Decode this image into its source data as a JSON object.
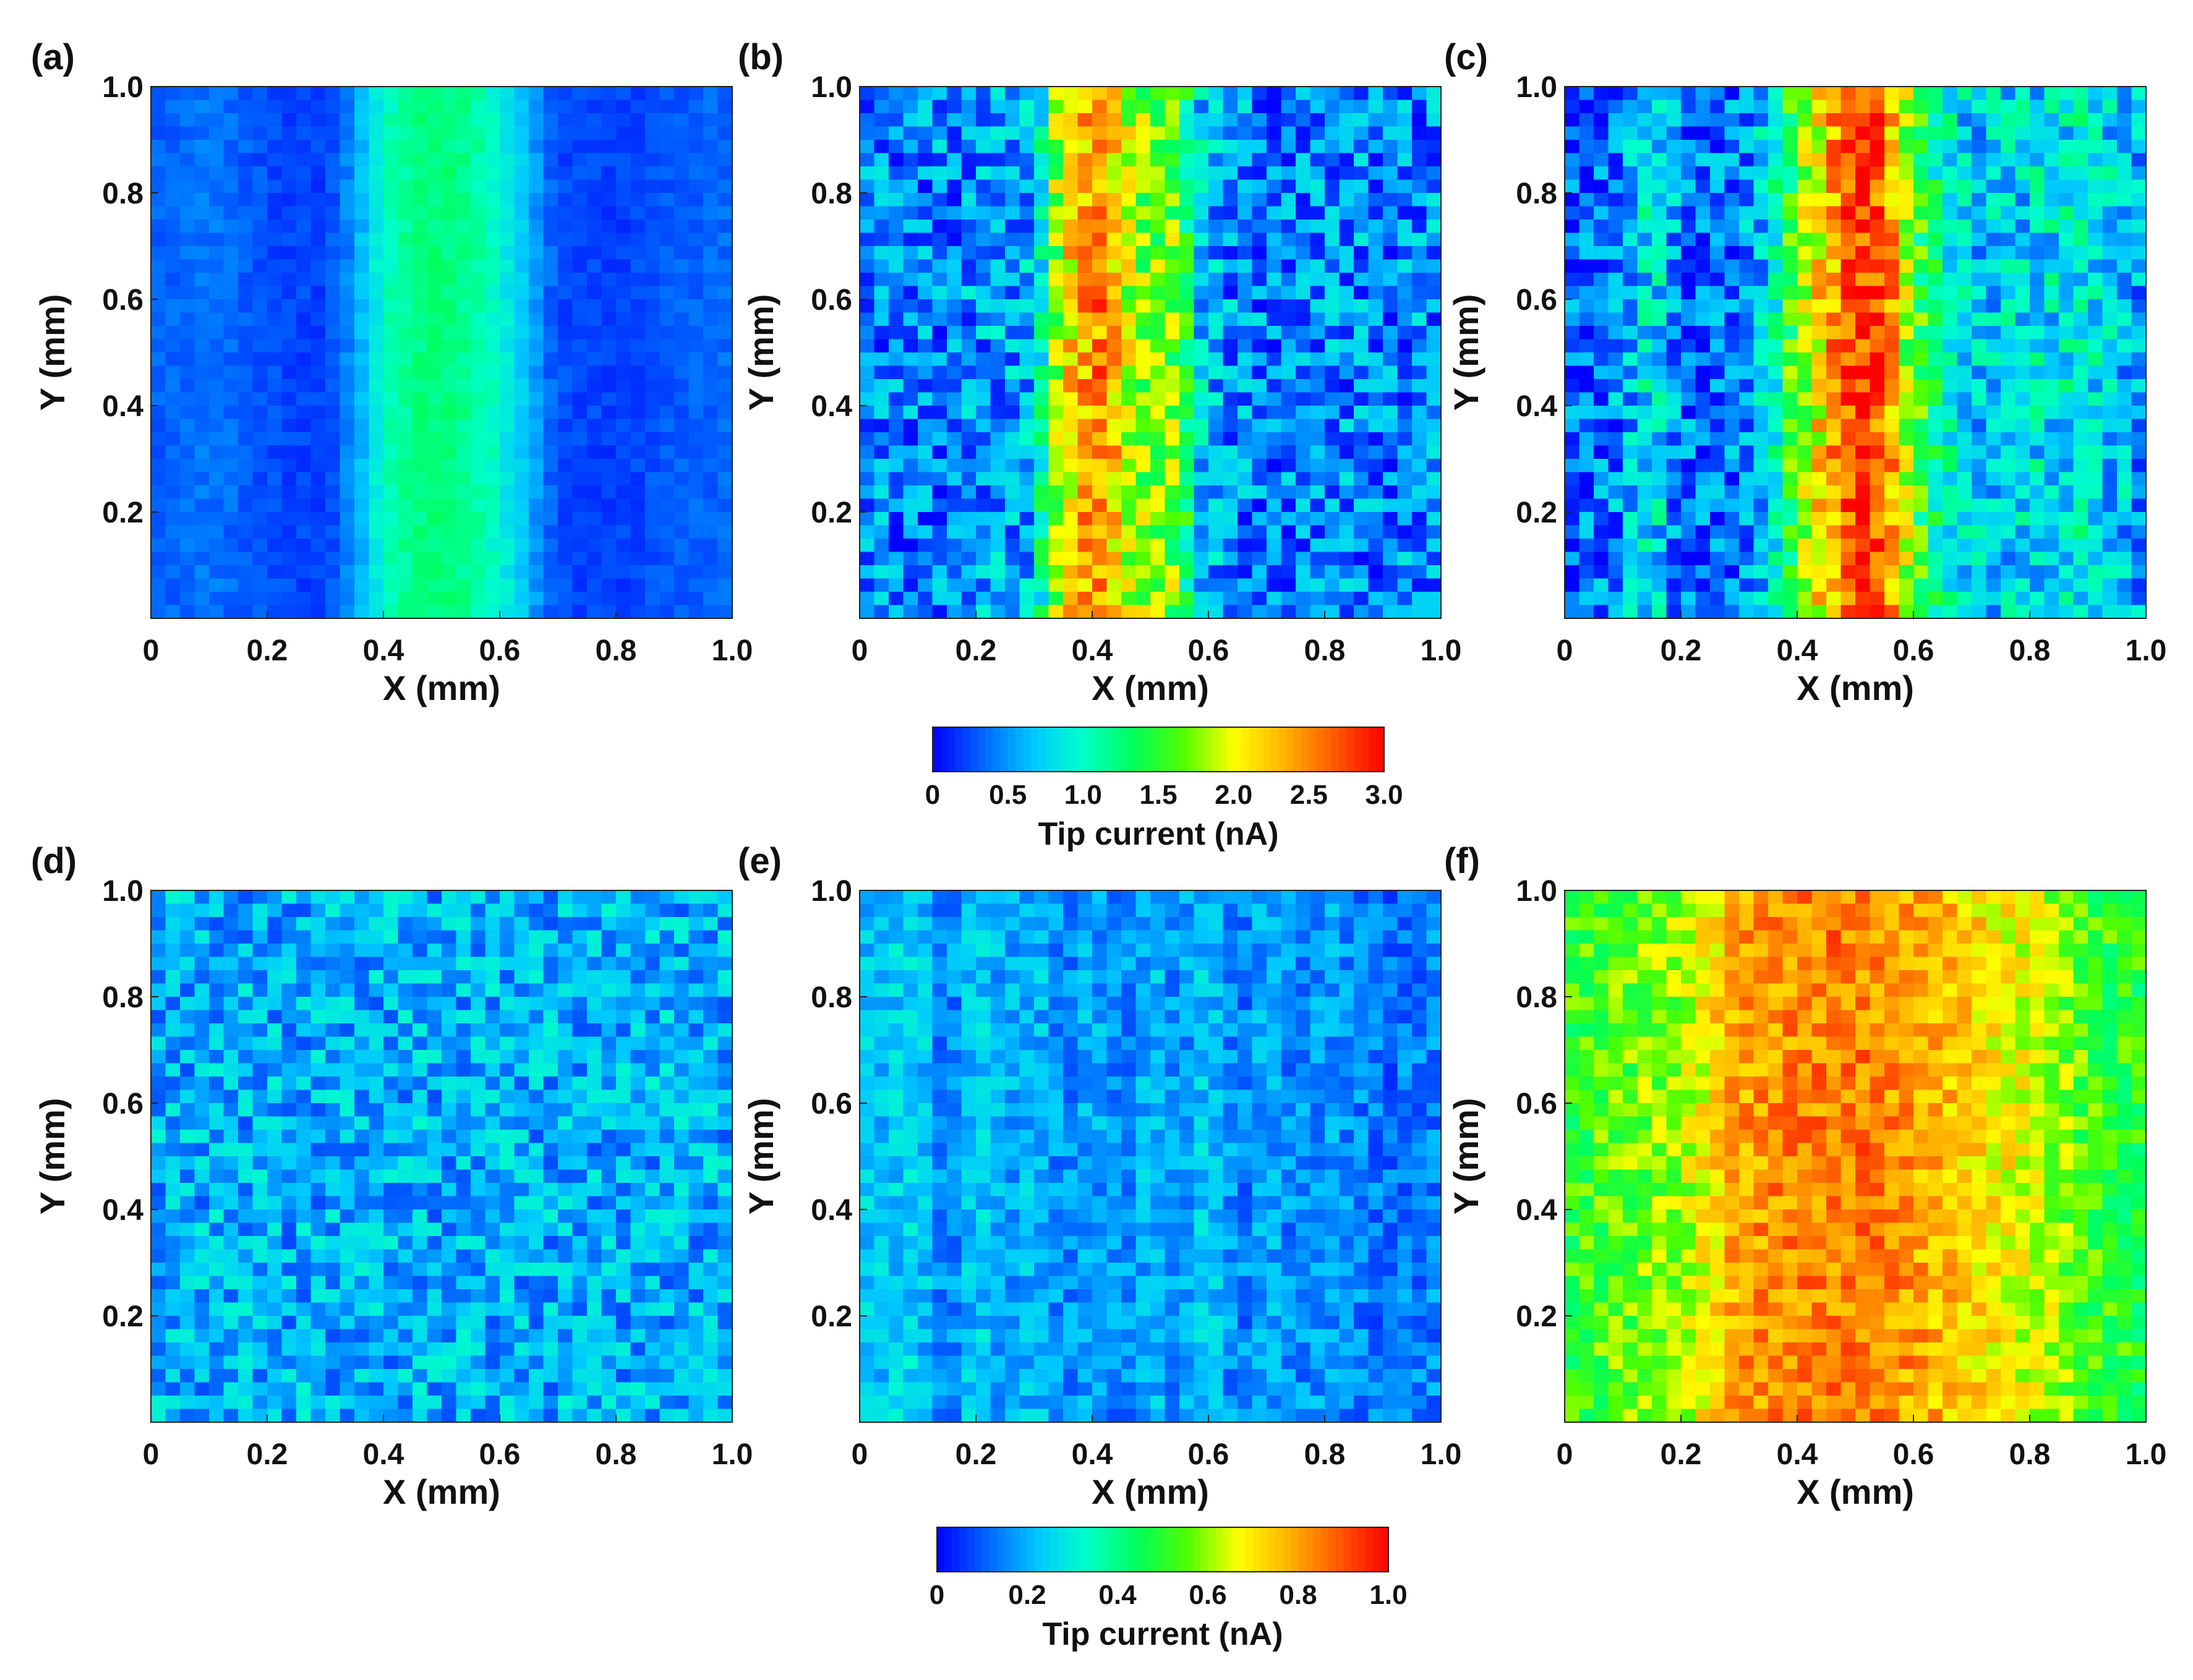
{
  "colormap": [
    "#0000ff",
    "#0064ff",
    "#00c8ff",
    "#00ffc8",
    "#00ff5a",
    "#50ff00",
    "#ffff00",
    "#ffb400",
    "#ff5a00",
    "#ff0000"
  ],
  "chart_data": [
    {
      "panel": "(a)",
      "type": "heatmap",
      "xlabel": "X (mm)",
      "ylabel": "Y (mm)",
      "xticks": [
        "0",
        "0.2",
        "0.4",
        "0.6",
        "0.8",
        "1.0"
      ],
      "yticks": [
        "0.2",
        "0.4",
        "0.6",
        "0.8",
        "1.0"
      ],
      "xlim": [
        0,
        1
      ],
      "ylim": [
        0,
        1
      ],
      "vmax": 3.0,
      "pattern": "stripe",
      "noise": 0.03,
      "seed": 11,
      "profile_x": [
        0,
        0.1,
        0.2,
        0.3,
        0.35,
        0.4,
        0.45,
        0.5,
        0.55,
        0.6,
        0.65,
        0.7,
        0.8,
        0.9,
        1.0
      ],
      "profile_v": [
        0.3,
        0.4,
        0.25,
        0.2,
        0.5,
        1.0,
        1.2,
        1.25,
        1.15,
        0.95,
        0.6,
        0.25,
        0.2,
        0.3,
        0.35
      ]
    },
    {
      "panel": "(b)",
      "type": "heatmap",
      "xlabel": "X (mm)",
      "ylabel": "Y (mm)",
      "xticks": [
        "0",
        "0.2",
        "0.4",
        "0.6",
        "0.8",
        "1.0"
      ],
      "yticks": [
        "0.2",
        "0.4",
        "0.6",
        "0.8",
        "1.0"
      ],
      "xlim": [
        0,
        1
      ],
      "ylim": [
        0,
        1
      ],
      "vmax": 3.0,
      "pattern": "stripe",
      "noise": 0.15,
      "seed": 23,
      "profile_x": [
        0,
        0.1,
        0.2,
        0.3,
        0.33,
        0.37,
        0.42,
        0.47,
        0.5,
        0.55,
        0.58,
        0.62,
        0.7,
        0.8,
        0.9,
        1.0
      ],
      "profile_v": [
        0.45,
        0.4,
        0.5,
        0.6,
        1.6,
        2.3,
        2.5,
        1.8,
        1.7,
        1.7,
        0.8,
        0.5,
        0.4,
        0.5,
        0.4,
        0.5
      ]
    },
    {
      "panel": "(c)",
      "type": "heatmap",
      "xlabel": "X (mm)",
      "ylabel": "Y (mm)",
      "xticks": [
        "0",
        "0.2",
        "0.4",
        "0.6",
        "0.8",
        "1.0"
      ],
      "yticks": [
        "0.2",
        "0.4",
        "0.6",
        "0.8",
        "1.0"
      ],
      "xlim": [
        0,
        1
      ],
      "ylim": [
        0,
        1
      ],
      "vmax": 3.0,
      "pattern": "stripe",
      "noise": 0.15,
      "seed": 37,
      "profile_x": [
        0,
        0.08,
        0.15,
        0.2,
        0.25,
        0.3,
        0.35,
        0.4,
        0.45,
        0.5,
        0.55,
        0.6,
        0.65,
        0.7,
        0.8,
        0.9,
        1.0
      ],
      "profile_v": [
        0.3,
        0.4,
        0.9,
        0.4,
        0.35,
        0.4,
        0.8,
        1.7,
        2.2,
        2.9,
        2.6,
        1.6,
        1.0,
        0.7,
        0.8,
        0.9,
        0.5
      ]
    },
    {
      "panel": "(d)",
      "type": "heatmap",
      "xlabel": "X (mm)",
      "ylabel": "Y (mm)",
      "xticks": [
        "0",
        "0.2",
        "0.4",
        "0.6",
        "0.8",
        "1.0"
      ],
      "yticks": [
        "0.2",
        "0.4",
        "0.6",
        "0.8",
        "1.0"
      ],
      "xlim": [
        0,
        1
      ],
      "ylim": [
        0,
        1
      ],
      "vmax": 1.0,
      "pattern": "noise",
      "base": 0.08,
      "noise": 0.12,
      "seed": 41
    },
    {
      "panel": "(e)",
      "type": "heatmap",
      "xlabel": "X (mm)",
      "ylabel": "Y (mm)",
      "xticks": [
        "0",
        "0.2",
        "0.4",
        "0.6",
        "0.8",
        "1.0"
      ],
      "yticks": [
        "0.2",
        "0.4",
        "0.6",
        "0.8",
        "1.0"
      ],
      "xlim": [
        0,
        1
      ],
      "ylim": [
        0,
        1
      ],
      "vmax": 1.0,
      "pattern": "stripe",
      "noise": 0.08,
      "seed": 53,
      "profile_x": [
        0,
        0.1,
        0.15,
        0.2,
        0.25,
        0.3,
        0.35,
        0.4,
        0.45,
        0.5,
        0.55,
        0.6,
        0.65,
        0.7,
        0.75,
        0.8,
        0.9,
        1.0
      ],
      "profile_v": [
        0.22,
        0.25,
        0.12,
        0.25,
        0.18,
        0.22,
        0.15,
        0.2,
        0.14,
        0.22,
        0.15,
        0.25,
        0.13,
        0.2,
        0.14,
        0.18,
        0.12,
        0.15
      ]
    },
    {
      "panel": "(f)",
      "type": "heatmap",
      "xlabel": "X (mm)",
      "ylabel": "Y (mm)",
      "xticks": [
        "0",
        "0.2",
        "0.4",
        "0.6",
        "0.8",
        "1.0"
      ],
      "yticks": [
        "0.2",
        "0.4",
        "0.6",
        "0.8",
        "1.0"
      ],
      "xlim": [
        0,
        1
      ],
      "ylim": [
        0,
        1
      ],
      "vmax": 1.0,
      "pattern": "stripe",
      "noise": 0.1,
      "seed": 67,
      "profile_x": [
        0,
        0.1,
        0.2,
        0.25,
        0.3,
        0.4,
        0.5,
        0.6,
        0.7,
        0.8,
        0.85,
        0.9,
        1.0
      ],
      "profile_v": [
        0.5,
        0.55,
        0.6,
        0.7,
        0.8,
        0.83,
        0.85,
        0.8,
        0.72,
        0.65,
        0.6,
        0.52,
        0.48
      ]
    }
  ],
  "colorbars": [
    {
      "ticks": [
        "0",
        "0.5",
        "1.0",
        "1.5",
        "2.0",
        "2.5",
        "3.0"
      ],
      "label": "Tip current (nA)",
      "vmin": 0,
      "vmax": 3.0
    },
    {
      "ticks": [
        "0",
        "0.2",
        "0.4",
        "0.6",
        "0.8",
        "1.0"
      ],
      "label": "Tip current (nA)",
      "vmin": 0,
      "vmax": 1.0
    }
  ]
}
